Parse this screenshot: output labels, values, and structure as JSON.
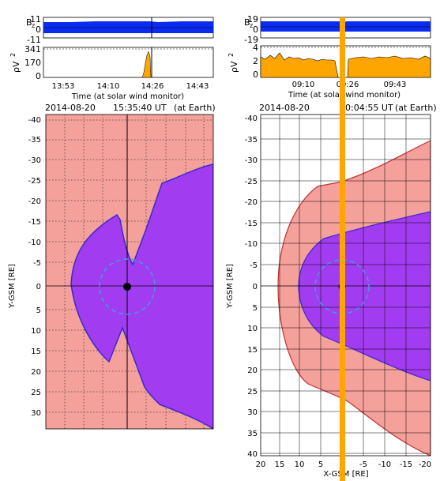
{
  "colors": {
    "magnetosheath": "#f4a09b",
    "magnetosphere": "#a23cf0",
    "boundary": "#3a2ad0",
    "bz_fill": "#0a2cf0",
    "pressure_fill": "#ffa500",
    "marker": "#ffa500",
    "earth_ring": "#3aa0dc"
  },
  "left": {
    "timeseries": {
      "bz_label": "B",
      "bz_sub": "z",
      "bz_ticks": [
        "11",
        "0",
        "-11"
      ],
      "pressure_label": "ρV",
      "pressure_sup": "2",
      "pressure_ticks": [
        "341",
        "170",
        "0"
      ],
      "time_ticks": [
        "13:53",
        "14:10",
        "14:26",
        "14:43"
      ],
      "time_axis_label": "Time (at solar wind monitor)"
    },
    "map": {
      "date": "2014-08-20",
      "time": "15:35:40 UT",
      "location": "(at Earth)",
      "y_label": "Y-GSM [RE]",
      "y_ticks": [
        "-40",
        "-35",
        "-30",
        "-25",
        "-20",
        "-15",
        "-10",
        "-5",
        "0",
        "5",
        "10",
        "15",
        "20",
        "25",
        "30"
      ]
    }
  },
  "right": {
    "timeseries": {
      "bz_label": "B",
      "bz_sub": "z",
      "bz_ticks": [
        "19",
        "0",
        "-19"
      ],
      "pressure_label": "ρV",
      "pressure_sup": "2",
      "pressure_ticks": [
        "4",
        "2",
        "0"
      ],
      "time_ticks": [
        "09:10",
        "09:26",
        "09:43"
      ],
      "time_axis_label": "Time (at solar wind monitor)"
    },
    "map": {
      "date": "2014-08-20",
      "time": "10:04:55 UT",
      "location": "(at Earth)",
      "y_label": "Y-GSM [RE]",
      "x_label": "X-GSM [RE]",
      "y_ticks": [
        "-40",
        "-35",
        "-30",
        "-25",
        "-20",
        "-15",
        "-10",
        "-5",
        "0",
        "5",
        "10",
        "15",
        "20",
        "25",
        "30",
        "35",
        "40"
      ],
      "x_ticks": [
        "20",
        "15",
        "10",
        "5",
        "0",
        "-5",
        "-10",
        "-15",
        "-20"
      ]
    }
  }
}
